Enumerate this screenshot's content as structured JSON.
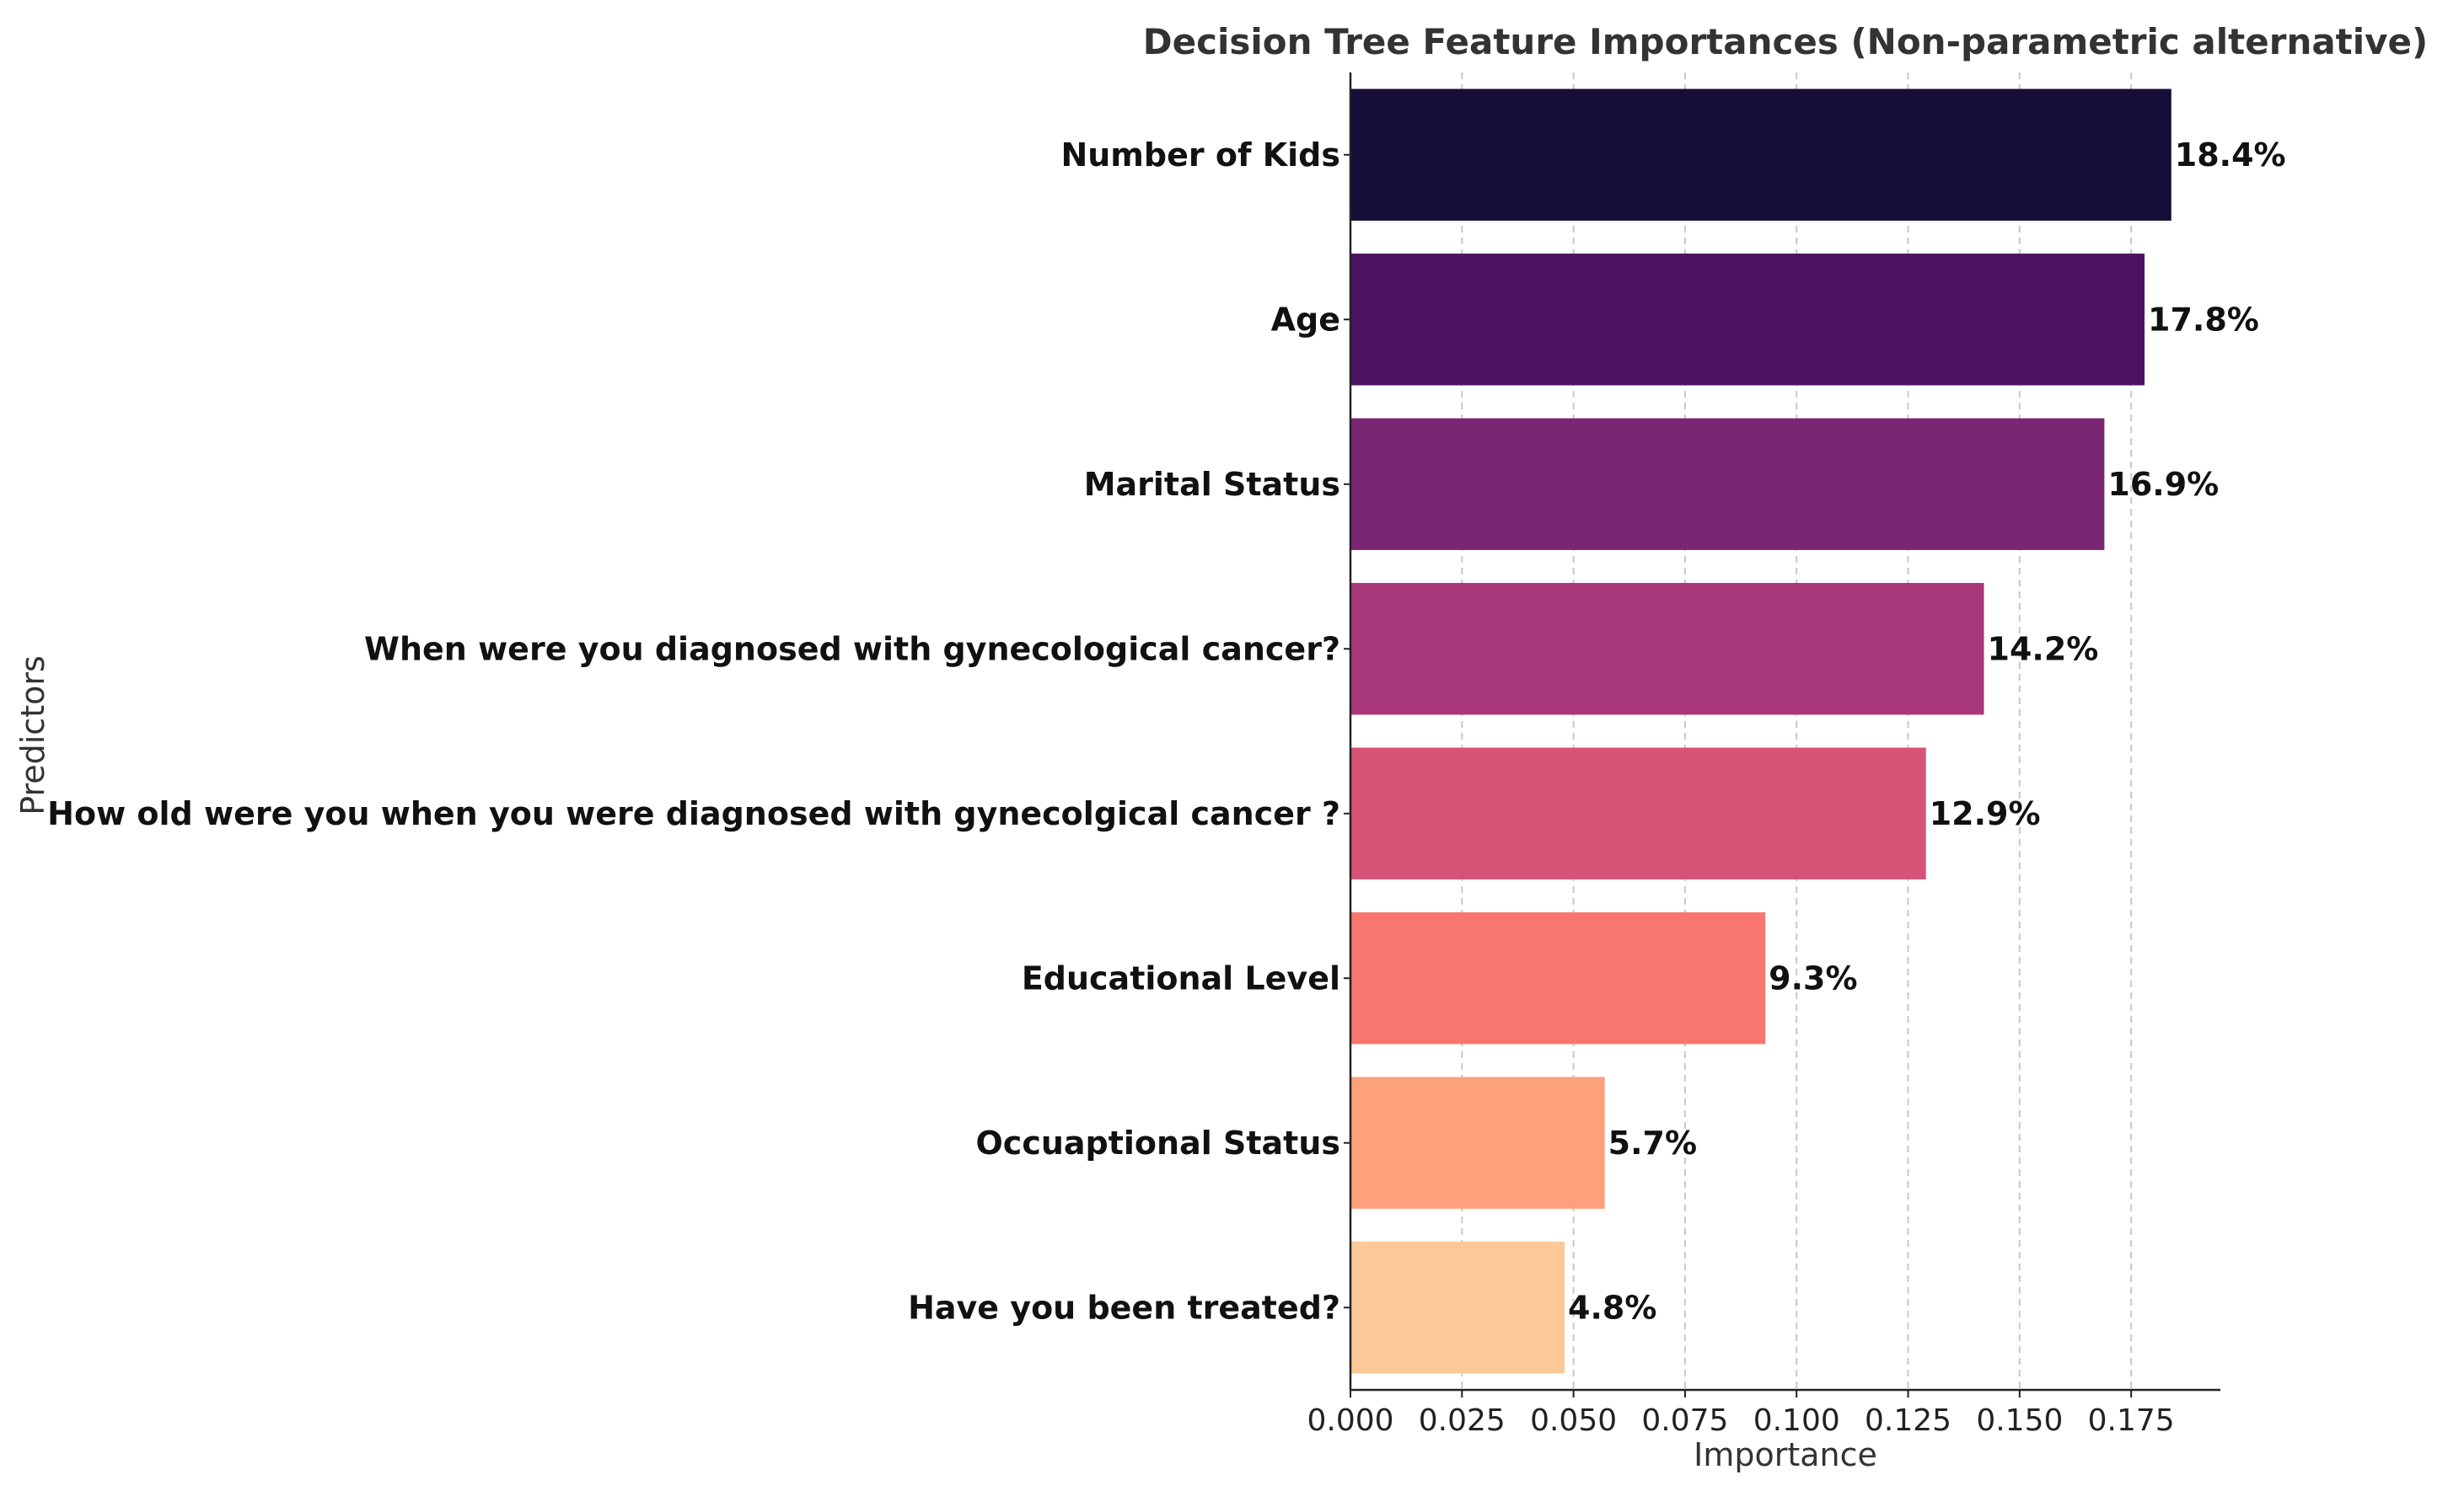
{
  "chart_data": {
    "type": "bar",
    "orientation": "horizontal",
    "title": "Decision Tree Feature Importances (Non-parametric alternative)",
    "xlabel": "Importance",
    "ylabel": "Predictors",
    "xlim": [
      0,
      0.195
    ],
    "xticks": [
      0.0,
      0.025,
      0.05,
      0.075,
      0.1,
      0.125,
      0.15,
      0.175
    ],
    "xtick_labels": [
      "0.000",
      "0.025",
      "0.050",
      "0.075",
      "0.100",
      "0.125",
      "0.150",
      "0.175"
    ],
    "grid": "x-dashed",
    "categories": [
      "Number of Kids",
      "Age",
      "Marital Status",
      "When were you diagnosed with gynecological cancer?",
      "How old were you when you were diagnosed with gynecolgical cancer ?",
      "Educational Level",
      "Occuaptional Status",
      "Have you been treated?"
    ],
    "values": [
      0.184,
      0.178,
      0.169,
      0.142,
      0.129,
      0.093,
      0.057,
      0.048
    ],
    "value_labels": [
      "18.4%",
      "17.8%",
      "16.9%",
      "14.2%",
      "12.9%",
      "9.3%",
      "5.7%",
      "4.8%"
    ],
    "colors": [
      "#160d38",
      "#4c1363",
      "#7a2773",
      "#a8387a",
      "#d75277",
      "#f9766e",
      "#fda07c",
      "#fcc897"
    ]
  }
}
